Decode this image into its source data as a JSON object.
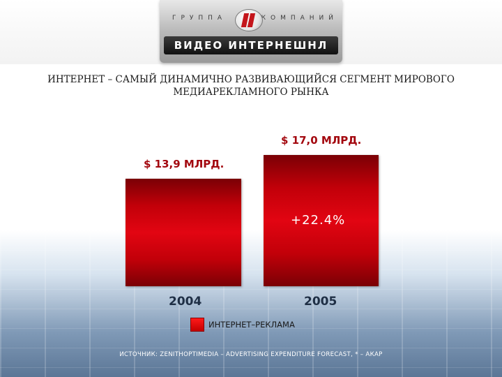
{
  "logo": {
    "group_left": "ГРУППА",
    "group_right": "КОМПАНИЙ",
    "name": "ВИДЕО ИНТЕРНЕШНЛ"
  },
  "title_line1": "ИНТЕРНЕТ – САМЫЙ ДИНАМИЧНО РАЗВИВАЮЩИЙСЯ СЕГМЕНТ МИРОВОГО",
  "title_line2": "МЕДИАРЕКЛАМНОГО РЫНКА",
  "chart_data": {
    "type": "bar",
    "categories": [
      "2004",
      "2005"
    ],
    "values": [
      13.9,
      17.0
    ],
    "data_labels": [
      "$ 13,9 МЛРД.",
      "$ 17,0 МЛРД."
    ],
    "growth_label": "+22.4%",
    "legend": "ИНТЕРНЕТ–РЕКЛАМА",
    "bar_color": "#d0000b",
    "legend_placement": "bottom"
  },
  "source": "ИСТОЧНИК:  ZENITHOPTIMEDIA – ADVERTISING EXPENDITURE FORECAST,  * – АКАР"
}
